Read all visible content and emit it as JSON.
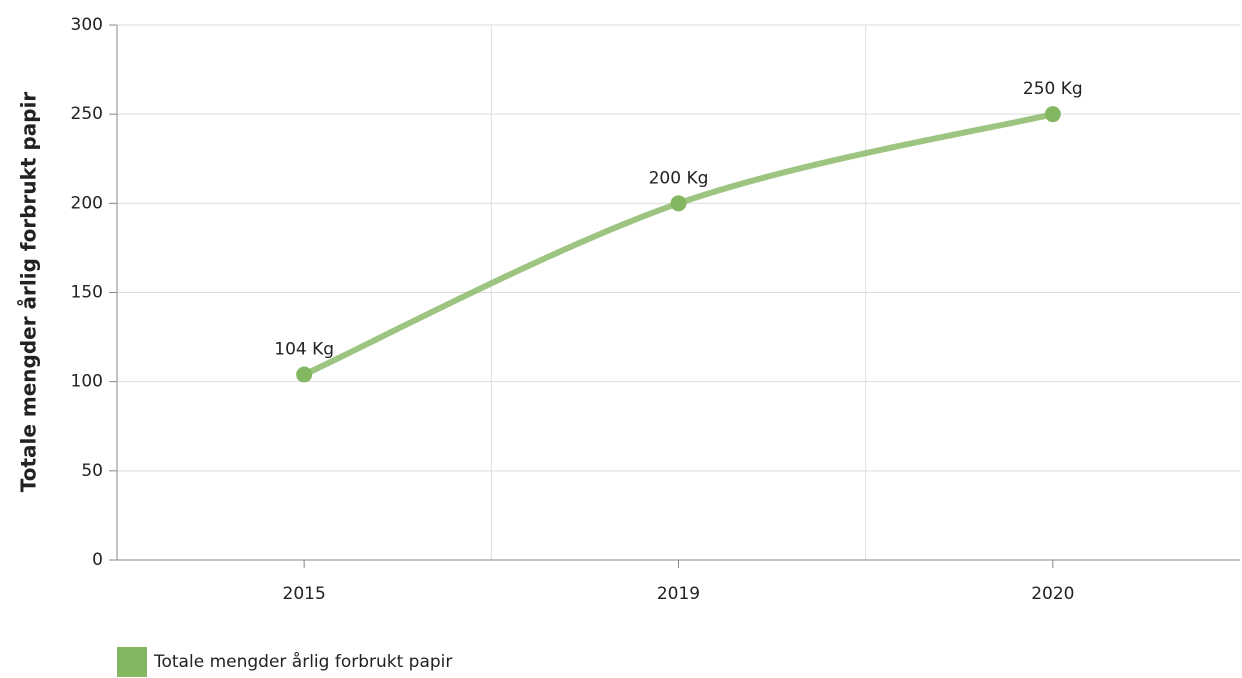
{
  "chart_data": {
    "type": "line",
    "y_label": "Totale mengder årlig forbrukt papir",
    "categories": [
      "2015",
      "2019",
      "2020"
    ],
    "series": [
      {
        "name": "Totale mengder årlig forbrukt papir",
        "color": "#84b761",
        "values": [
          104,
          200,
          250
        ],
        "value_labels": [
          "104 Kg",
          "200 Kg",
          "250 Kg"
        ]
      }
    ],
    "ylim": [
      0,
      300
    ],
    "yticks": [
      0,
      50,
      100,
      150,
      200,
      250,
      300
    ],
    "grid": true,
    "smooth": true,
    "legend": "bottom-left"
  }
}
